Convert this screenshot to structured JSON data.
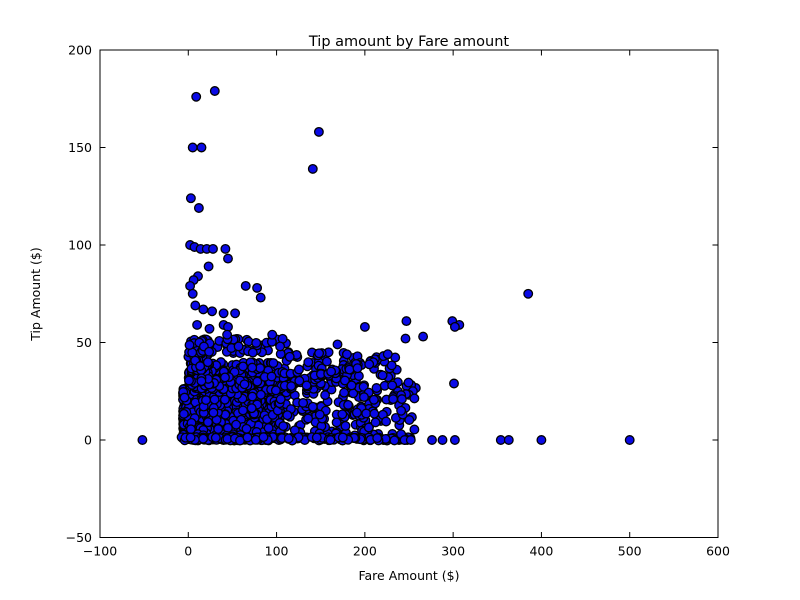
{
  "chart_data": {
    "type": "scatter",
    "title": "Tip amount by Fare amount",
    "xlabel": "Fare Amount ($)",
    "ylabel": "Tip Amount ($)",
    "xlim": [
      -100,
      600
    ],
    "ylim": [
      -50,
      200
    ],
    "xticks": {
      "values": [
        -100,
        0,
        100,
        200,
        300,
        400,
        500,
        600
      ],
      "labels": [
        "−100",
        "0",
        "100",
        "200",
        "300",
        "400",
        "500",
        "600"
      ]
    },
    "yticks": {
      "values": [
        -50,
        0,
        50,
        100,
        150,
        200
      ],
      "labels": [
        "−50",
        "0",
        "50",
        "100",
        "150",
        "200"
      ]
    },
    "grid": false,
    "legend": null,
    "colors": {
      "background": "#ffffff",
      "axes": "#000000",
      "text": "#000000"
    },
    "marker": {
      "shape": "circle",
      "fill": "#0a0ae6",
      "edge": "#000000",
      "radius": 4.3,
      "edge_width": 1.3
    },
    "points": [
      [
        -52,
        0
      ],
      [
        9,
        176
      ],
      [
        30,
        179
      ],
      [
        5,
        150
      ],
      [
        15,
        150
      ],
      [
        148,
        158
      ],
      [
        141,
        139
      ],
      [
        3,
        124
      ],
      [
        12,
        119
      ],
      [
        2,
        100
      ],
      [
        7,
        99
      ],
      [
        14,
        98
      ],
      [
        21,
        98
      ],
      [
        28,
        98
      ],
      [
        42,
        98
      ],
      [
        45,
        93
      ],
      [
        23,
        89
      ],
      [
        11,
        84
      ],
      [
        6,
        82
      ],
      [
        2,
        79
      ],
      [
        5,
        75
      ],
      [
        65,
        79
      ],
      [
        78,
        78
      ],
      [
        82,
        73
      ],
      [
        8,
        69
      ],
      [
        17,
        67
      ],
      [
        27,
        66
      ],
      [
        40,
        65
      ],
      [
        53,
        65
      ],
      [
        10,
        59
      ],
      [
        24,
        57
      ],
      [
        40,
        59
      ],
      [
        45,
        58
      ],
      [
        44,
        54
      ],
      [
        95,
        54
      ],
      [
        104,
        48
      ],
      [
        169,
        49
      ],
      [
        200,
        58
      ],
      [
        385,
        75
      ],
      [
        247,
        61
      ],
      [
        299,
        61
      ],
      [
        307,
        59
      ],
      [
        302,
        58
      ],
      [
        246,
        52
      ],
      [
        266,
        53
      ],
      [
        221,
        43
      ],
      [
        226,
        44
      ],
      [
        231,
        28
      ],
      [
        301,
        29
      ],
      [
        232,
        22
      ],
      [
        241,
        23
      ],
      [
        134,
        28
      ],
      [
        155,
        23
      ],
      [
        185,
        28
      ],
      [
        199,
        22
      ],
      [
        232,
        21
      ],
      [
        242,
        21
      ],
      [
        181,
        18
      ],
      [
        191,
        14
      ],
      [
        168,
        9
      ],
      [
        149,
        13
      ],
      [
        141,
        17
      ],
      [
        130,
        19
      ],
      [
        212,
        9
      ],
      [
        243,
        13
      ],
      [
        241,
        15
      ],
      [
        241,
        3
      ],
      [
        245,
        0
      ],
      [
        252,
        0
      ],
      [
        276,
        0
      ],
      [
        288,
        0
      ],
      [
        302,
        0
      ],
      [
        354,
        0
      ],
      [
        363,
        0
      ],
      [
        400,
        0
      ],
      [
        500,
        0
      ]
    ],
    "dense_clusters": [
      {
        "name": "core-mass",
        "count": 1000,
        "x": [
          -6,
          105
        ],
        "xpow": 1.3,
        "y": [
          0,
          27
        ],
        "ypow": 1.2
      },
      {
        "name": "upper-fringe",
        "count": 240,
        "x": [
          0,
          112
        ],
        "xpow": 1.15,
        "y": [
          26,
          40
        ],
        "ypow": 1
      },
      {
        "name": "low-fare-column",
        "count": 130,
        "x": [
          0,
          24
        ],
        "xpow": 1,
        "y": [
          28,
          52
        ],
        "ypow": 1
      },
      {
        "name": "tip-50-band",
        "count": 60,
        "x": [
          0,
          118
        ],
        "xpow": 1,
        "y": [
          44,
          52
        ],
        "ypow": 1
      },
      {
        "name": "mid-fare-block",
        "count": 110,
        "x": [
          103,
          218
        ],
        "xpow": 1,
        "y": [
          1,
          26
        ],
        "ypow": 1
      },
      {
        "name": "mid-fare-upper",
        "count": 85,
        "x": [
          108,
          195
        ],
        "xpow": 1,
        "y": [
          26,
          45
        ],
        "ypow": 1
      },
      {
        "name": "mid-fare-upper-2",
        "count": 14,
        "x": [
          190,
          240
        ],
        "xpow": 1,
        "y": [
          28,
          44
        ],
        "ypow": 1
      },
      {
        "name": "high-fare-block",
        "count": 45,
        "x": [
          195,
          258
        ],
        "xpow": 1,
        "y": [
          1,
          30
        ],
        "ypow": 1
      },
      {
        "name": "zero-tip-row",
        "count": 210,
        "x": [
          -8,
          252
        ],
        "xpow": 1,
        "y": [
          -0.3,
          1.5
        ],
        "ypow": 1
      },
      {
        "name": "proportional-streak",
        "type": "line",
        "count": 65,
        "x": [
          68,
          216
        ],
        "a": 14,
        "b": 0.125,
        "jitter": 2.4
      }
    ],
    "seed": 123456789
  }
}
